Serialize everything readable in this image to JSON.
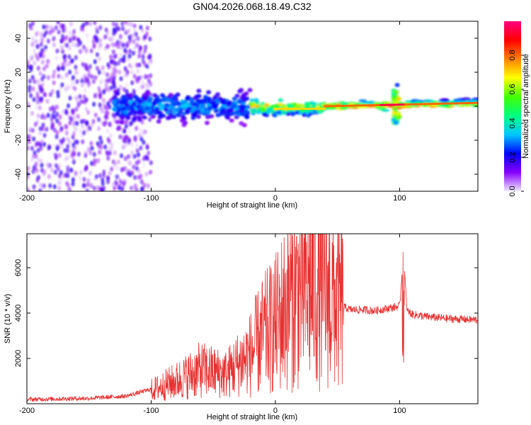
{
  "title": "GN04.2026.068.18.49.C32",
  "chart_data": [
    {
      "type": "heatmap",
      "name": "spectrogram",
      "xlabel": "Height of straight line (km)",
      "ylabel": "Frequency (Hz)",
      "xlim": [
        -200,
        163
      ],
      "ylim": [
        -50,
        50
      ],
      "x_ticks": [
        "-200",
        "-100",
        "0",
        "100"
      ],
      "x_tick_values": [
        -200,
        -100,
        0,
        100
      ],
      "y_ticks": [
        "-40",
        "-20",
        "0",
        "20",
        "40"
      ],
      "y_tick_values": [
        -40,
        -20,
        0,
        20,
        40
      ],
      "colorbar": {
        "label": "Normalized spectral amplitude",
        "range": [
          0,
          1
        ],
        "ticks": [
          "0.0",
          "0.2",
          "0.4",
          "0.6",
          "0.8"
        ],
        "tick_values": [
          0.0,
          0.2,
          0.4,
          0.6,
          0.8
        ],
        "colors": [
          "#f0e8ff",
          "#8800ff",
          "#0000ff",
          "#00c8ff",
          "#00ff80",
          "#40ff00",
          "#ffff00",
          "#ff8000",
          "#ff0000",
          "#ff0080"
        ]
      },
      "regions": [
        {
          "x": [
            -200,
            -100
          ],
          "y_spread": 50,
          "amplitude": 0.15,
          "description": "scattered noise"
        },
        {
          "x": [
            -130,
            -20
          ],
          "y_spread": 8,
          "amplitude": 0.35
        },
        {
          "x": [
            -20,
            40
          ],
          "y_spread": 3,
          "amplitude": 0.75
        },
        {
          "x": [
            40,
            163
          ],
          "y_spread": 2,
          "amplitude": 0.85
        },
        {
          "x": [
            95,
            100
          ],
          "y_spread": 10,
          "amplitude": 0.9
        }
      ]
    },
    {
      "type": "line",
      "name": "snr",
      "xlabel": "Height of straight line (km)",
      "ylabel": "SNR (10 * v/v)",
      "xlim": [
        -200,
        163
      ],
      "ylim": [
        0,
        7500
      ],
      "x_ticks": [
        "-200",
        "-100",
        "0",
        "100"
      ],
      "x_tick_values": [
        -200,
        -100,
        0,
        100
      ],
      "y_ticks": [
        "2000",
        "4000",
        "6000"
      ],
      "y_tick_values": [
        2000,
        4000,
        6000
      ],
      "color": "#e83030",
      "envelope": {
        "x": [
          -200,
          -150,
          -120,
          -100,
          -80,
          -60,
          -40,
          -20,
          -10,
          0,
          10,
          20,
          30,
          40,
          50,
          60,
          70,
          80,
          90,
          95,
          100,
          103,
          106,
          110,
          120,
          140,
          163
        ],
        "y": [
          150,
          200,
          300,
          600,
          1000,
          1500,
          1300,
          2200,
          3000,
          3500,
          4500,
          5000,
          5200,
          5000,
          4400,
          4150,
          4150,
          4100,
          4200,
          4250,
          4300,
          6600,
          4100,
          3950,
          3850,
          3750,
          3700
        ]
      }
    }
  ]
}
